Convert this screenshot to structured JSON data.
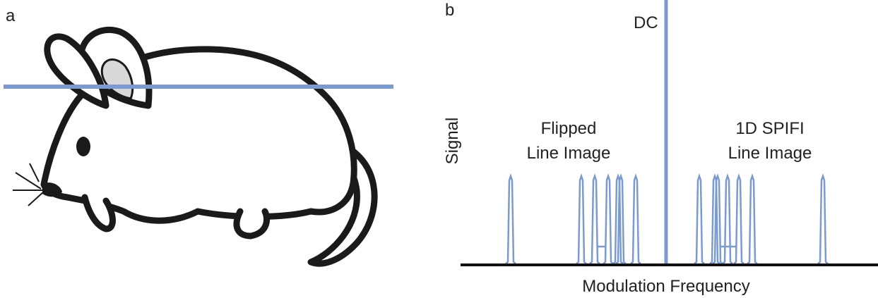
{
  "panel_a": {
    "label": "a"
  },
  "panel_b": {
    "label": "b",
    "y_label": "Signal",
    "x_label": "Modulation Frequency",
    "dc_label": "DC",
    "left_label": [
      "Flipped",
      "Line Image"
    ],
    "right_label": [
      "1D SPIFI",
      "Line Image"
    ]
  }
}
